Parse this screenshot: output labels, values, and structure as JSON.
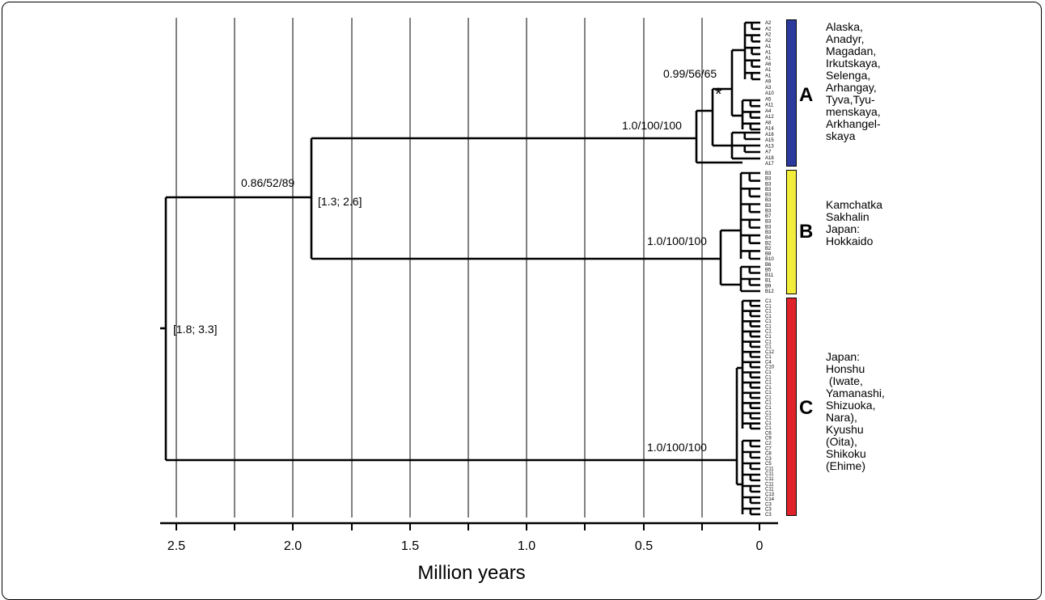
{
  "axis": {
    "label": "Million years",
    "ticks": [
      "2.5",
      "2.0",
      "1.5",
      "1.0",
      "0.5",
      "0"
    ]
  },
  "nodes": {
    "root_interval": "[1.8; 3.3]",
    "ab_support": "0.86/52/89",
    "ab_interval": "[1.3; 2.6]",
    "a_support": "1.0/100/100",
    "a_inner_support": "0.99/56/65",
    "a_inner_marker": "*",
    "b_support": "1.0/100/100",
    "c_support": "1.0/100/100"
  },
  "clades": [
    {
      "letter": "A",
      "color": "#2b3a9c",
      "regions": [
        "Alaska,",
        "Anadyr,",
        "Magadan,",
        "Irkutskaya,",
        "Selenga,",
        "Arhangay,",
        "Tyva,Tyu-",
        "menskaya,",
        "Arkhangel-",
        "skaya"
      ],
      "tips": [
        "A2",
        "A2",
        "A2",
        "A2",
        "A1",
        "A1",
        "A1",
        "A6",
        "A1",
        "A1",
        "A9",
        "A3",
        "A10",
        "A5",
        "A11",
        "A4",
        "A12",
        "A8",
        "A14",
        "A16",
        "A15",
        "A13",
        "A7",
        "A18",
        "A17"
      ]
    },
    {
      "letter": "B",
      "color": "#f2ec3a",
      "regions": [
        "Kamchatka",
        "Sakhalin",
        "Japan:",
        "Hokkaido"
      ],
      "tips": [
        "B3",
        "B3",
        "B3",
        "B3",
        "B3",
        "B3",
        "B3",
        "B3",
        "B7",
        "B3",
        "B3",
        "B3",
        "B4",
        "B2",
        "B2",
        "B8",
        "B10",
        "B6",
        "B5",
        "B11",
        "B1",
        "B9",
        "B12"
      ]
    },
    {
      "letter": "C",
      "color": "#e0232b",
      "regions": [
        "Japan:",
        "Honshu",
        " (Iwate,",
        "Yamanashi,",
        "Shizuoka,",
        "Nara),",
        "Kyushu",
        "(Oita),",
        "Shikoku",
        "(Ehime)"
      ],
      "tips": [
        "C1",
        "C1",
        "C1",
        "C1",
        "C1",
        "C1",
        "C1",
        "C1",
        "C1",
        "C1",
        "C12",
        "C1",
        "C4",
        "C10",
        "C1",
        "C1",
        "C1",
        "C1",
        "C1",
        "C1",
        "C1",
        "C1",
        "C1",
        "C1",
        "C1",
        "C1",
        "C6",
        "C9",
        "C2",
        "C7",
        "C8",
        "C3",
        "C5",
        "C11",
        "C11",
        "C11",
        "C11",
        "C11",
        "C13",
        "C14",
        "C3",
        "C3",
        "C3"
      ]
    }
  ]
}
